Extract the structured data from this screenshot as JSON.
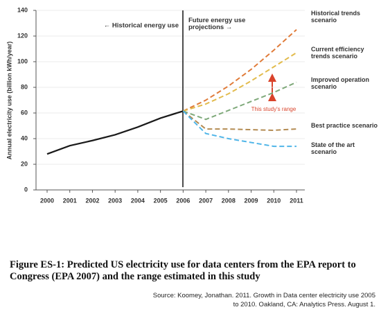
{
  "chart_data": {
    "type": "line",
    "y_label": "Annual electricity use (billion kWh/year)",
    "annotations": [
      "← Historical energy use",
      "Future energy use projections →",
      "This study's range"
    ],
    "x": [
      2000,
      2001,
      2002,
      2003,
      2004,
      2005,
      2006,
      2007,
      2008,
      2009,
      2010,
      2011
    ],
    "xlim": [
      2000,
      2011
    ],
    "xticks": [
      2000,
      2001,
      2002,
      2003,
      2004,
      2005,
      2006,
      2007,
      2008,
      2009,
      2010,
      2011
    ],
    "ylim": [
      0,
      140
    ],
    "yticks": [
      0,
      20,
      40,
      60,
      80,
      100,
      120,
      140
    ],
    "grid": true,
    "series": [
      {
        "color": "#1a1a1a",
        "dashed": false,
        "values": [
          28,
          34.5,
          38.5,
          43,
          49,
          56,
          61.5,
          null,
          null,
          null,
          null,
          null
        ]
      },
      {
        "name": "Historical trends scenario",
        "color": "#e07b39",
        "dashed": true,
        "values": [
          null,
          null,
          null,
          null,
          null,
          null,
          61.5,
          70,
          81,
          94,
          109,
          125
        ]
      },
      {
        "name": "Current efficiency trends scenario",
        "color": "#e2bb4c",
        "dashed": true,
        "values": [
          null,
          null,
          null,
          null,
          null,
          null,
          61.5,
          67,
          75,
          85,
          96,
          107
        ]
      },
      {
        "name": "Improved operation scenario",
        "color": "#7fa97a",
        "dashed": true,
        "values": [
          null,
          null,
          null,
          null,
          null,
          null,
          61.5,
          55,
          62,
          69,
          76,
          84
        ]
      },
      {
        "name": "Best practice scenario",
        "color": "#b38b52",
        "dashed": true,
        "values": [
          null,
          null,
          null,
          null,
          null,
          null,
          61.5,
          47.5,
          47.5,
          47,
          46.5,
          47.5
        ]
      },
      {
        "name": "State of the art scenario",
        "color": "#4fb5e8",
        "dashed": true,
        "values": [
          null,
          null,
          null,
          null,
          null,
          null,
          61.5,
          44,
          40,
          37,
          34,
          34
        ]
      }
    ]
  },
  "caption": "Figure ES-1:  Predicted US electricity use for data centers from the EPA report to Congress (EPA 2007) and the range estimated in this study",
  "source": "Source: Koomey, Jonathan. 2011. Growth in Data center electricity use 2005 to 2010. Oakland, CA: Analytics Press. August 1."
}
